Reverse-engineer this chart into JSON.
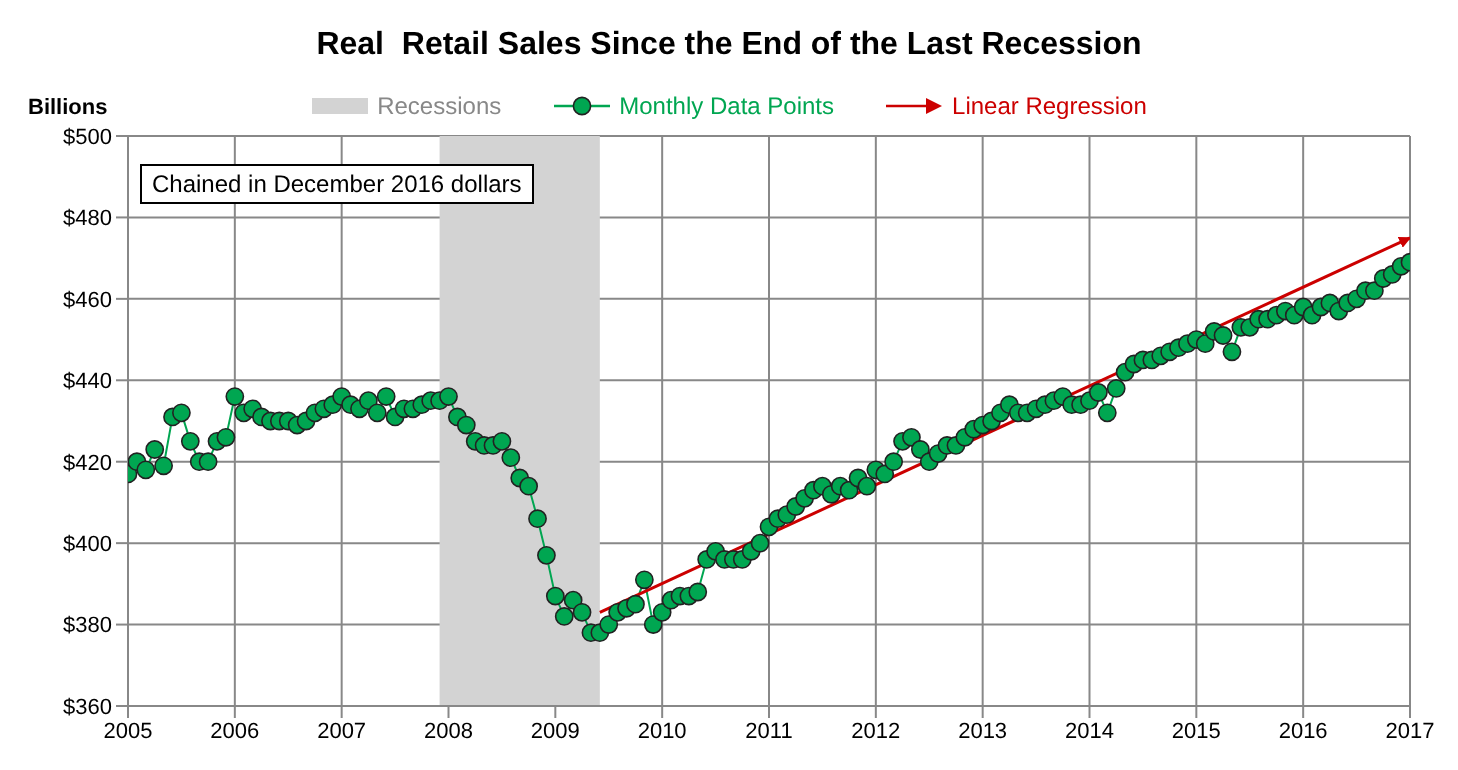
{
  "chart_data": {
    "type": "line",
    "title": "Real  Retail Sales Since the End of the Last Recession",
    "ylabel": "Billions",
    "annotations": [
      "Chained in December 2016 dollars"
    ],
    "xlim": [
      "2005-01",
      "2017-01"
    ],
    "xticks": [
      "2005",
      "2006",
      "2007",
      "2008",
      "2009",
      "2010",
      "2011",
      "2012",
      "2013",
      "2014",
      "2015",
      "2016",
      "2017"
    ],
    "ylim": [
      360,
      500
    ],
    "yticks": [
      {
        "value": 360,
        "label": "$360"
      },
      {
        "value": 380,
        "label": "$380"
      },
      {
        "value": 400,
        "label": "$400"
      },
      {
        "value": 420,
        "label": "$420"
      },
      {
        "value": 440,
        "label": "$440"
      },
      {
        "value": 460,
        "label": "$460"
      },
      {
        "value": 480,
        "label": "$480"
      },
      {
        "value": 500,
        "label": "$500"
      }
    ],
    "grid": true,
    "legend": "top",
    "marker": "circle",
    "line_style": "solid",
    "bands": [
      {
        "axis": "x",
        "from": "2007-12",
        "to": "2009-06",
        "label": "Recessions",
        "color": "#d3d3d3"
      }
    ],
    "series": [
      {
        "name": "Monthly Data Points",
        "color": "#00a651",
        "x": [
          "2005-01",
          "2005-02",
          "2005-03",
          "2005-04",
          "2005-05",
          "2005-06",
          "2005-07",
          "2005-08",
          "2005-09",
          "2005-10",
          "2005-11",
          "2005-12",
          "2006-01",
          "2006-02",
          "2006-03",
          "2006-04",
          "2006-05",
          "2006-06",
          "2006-07",
          "2006-08",
          "2006-09",
          "2006-10",
          "2006-11",
          "2006-12",
          "2007-01",
          "2007-02",
          "2007-03",
          "2007-04",
          "2007-05",
          "2007-06",
          "2007-07",
          "2007-08",
          "2007-09",
          "2007-10",
          "2007-11",
          "2007-12",
          "2008-01",
          "2008-02",
          "2008-03",
          "2008-04",
          "2008-05",
          "2008-06",
          "2008-07",
          "2008-08",
          "2008-09",
          "2008-10",
          "2008-11",
          "2008-12",
          "2009-01",
          "2009-02",
          "2009-03",
          "2009-04",
          "2009-05",
          "2009-06",
          "2009-07",
          "2009-08",
          "2009-09",
          "2009-10",
          "2009-11",
          "2009-12",
          "2010-01",
          "2010-02",
          "2010-03",
          "2010-04",
          "2010-05",
          "2010-06",
          "2010-07",
          "2010-08",
          "2010-09",
          "2010-10",
          "2010-11",
          "2010-12",
          "2011-01",
          "2011-02",
          "2011-03",
          "2011-04",
          "2011-05",
          "2011-06",
          "2011-07",
          "2011-08",
          "2011-09",
          "2011-10",
          "2011-11",
          "2011-12",
          "2012-01",
          "2012-02",
          "2012-03",
          "2012-04",
          "2012-05",
          "2012-06",
          "2012-07",
          "2012-08",
          "2012-09",
          "2012-10",
          "2012-11",
          "2012-12",
          "2013-01",
          "2013-02",
          "2013-03",
          "2013-04",
          "2013-05",
          "2013-06",
          "2013-07",
          "2013-08",
          "2013-09",
          "2013-10",
          "2013-11",
          "2013-12",
          "2014-01",
          "2014-02",
          "2014-03",
          "2014-04",
          "2014-05",
          "2014-06",
          "2014-07",
          "2014-08",
          "2014-09",
          "2014-10",
          "2014-11",
          "2014-12",
          "2015-01",
          "2015-02",
          "2015-03",
          "2015-04",
          "2015-05",
          "2015-06",
          "2015-07",
          "2015-08",
          "2015-09",
          "2015-10",
          "2015-11",
          "2015-12",
          "2016-01",
          "2016-02",
          "2016-03",
          "2016-04",
          "2016-05",
          "2016-06",
          "2016-07",
          "2016-08",
          "2016-09",
          "2016-10",
          "2016-11",
          "2016-12",
          "2017-01"
        ],
        "values": [
          417,
          420,
          418,
          423,
          419,
          431,
          432,
          425,
          420,
          420,
          425,
          426,
          436,
          432,
          433,
          431,
          430,
          430,
          430,
          429,
          430,
          432,
          433,
          434,
          436,
          434,
          433,
          435,
          432,
          436,
          431,
          433,
          433,
          434,
          435,
          435,
          436,
          431,
          429,
          425,
          424,
          424,
          425,
          421,
          416,
          414,
          406,
          397,
          387,
          382,
          386,
          383,
          378,
          378,
          380,
          383,
          384,
          385,
          391,
          380,
          383,
          386,
          387,
          387,
          388,
          396,
          398,
          396,
          396,
          396,
          398,
          400,
          404,
          406,
          407,
          409,
          411,
          413,
          414,
          412,
          414,
          413,
          416,
          414,
          418,
          417,
          420,
          425,
          426,
          423,
          420,
          422,
          424,
          424,
          426,
          428,
          429,
          430,
          432,
          434,
          432,
          432,
          433,
          434,
          435,
          436,
          434,
          434,
          435,
          437,
          432,
          438,
          442,
          444,
          445,
          445,
          446,
          447,
          448,
          449,
          450,
          449,
          452,
          451,
          447,
          453,
          453,
          455,
          455,
          456,
          457,
          456,
          458,
          456,
          458,
          459,
          457,
          459,
          460,
          462,
          462,
          465,
          466,
          468,
          469
        ]
      },
      {
        "name": "Linear Regression",
        "type": "line",
        "color": "#cc0000",
        "marker": "none",
        "x": [
          "2009-06",
          "2017-01"
        ],
        "values": [
          383,
          475
        ]
      }
    ]
  }
}
